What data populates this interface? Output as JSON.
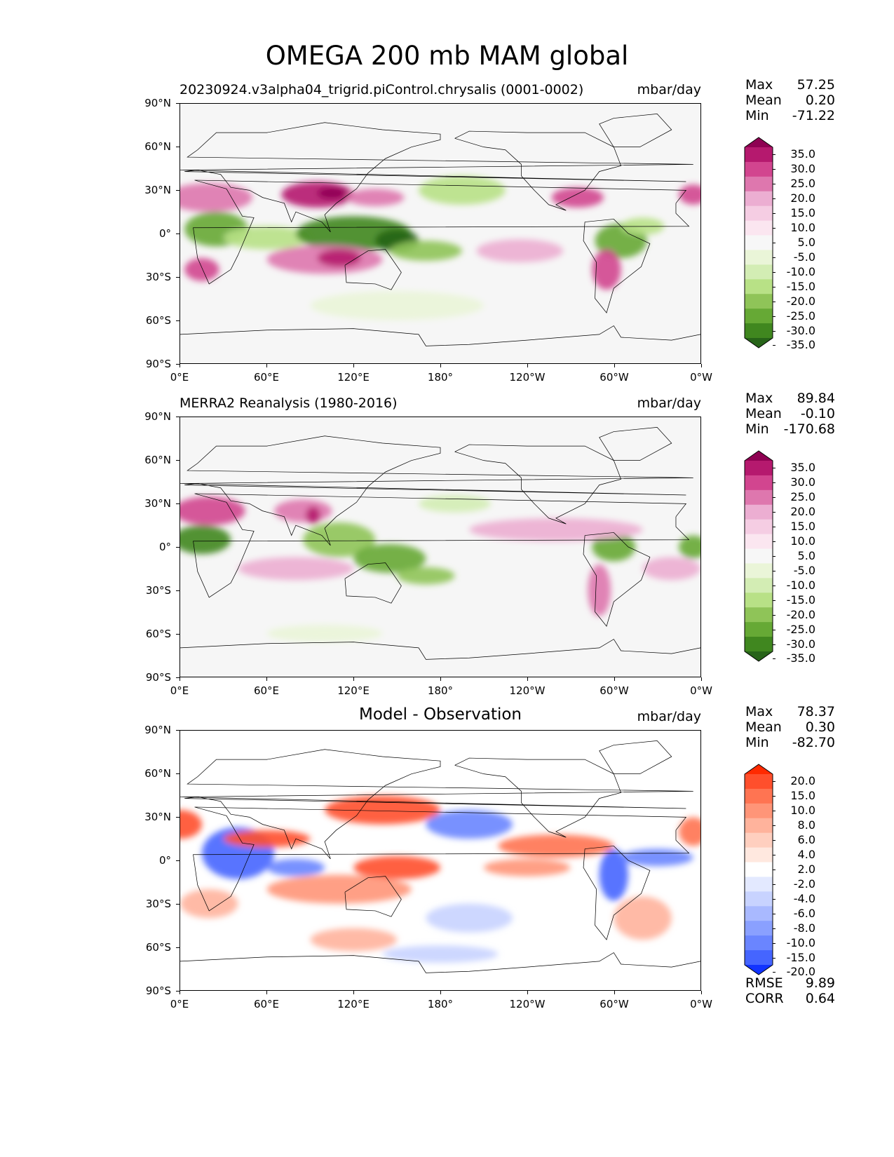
{
  "title": "OMEGA 200 mb MAM global",
  "panels": [
    {
      "subtitle": "20230924.v3alpha04_trigrid.piControl.chrysalis (0001-0002)",
      "subtitle_style": "left",
      "units": "mbar/day",
      "stats": [
        {
          "key": "Max",
          "value": "57.25"
        },
        {
          "key": "Mean",
          "value": "0.20"
        },
        {
          "key": "Min",
          "value": "-71.22"
        }
      ],
      "colorbar": {
        "labels": [
          "35.0",
          "30.0",
          "25.0",
          "20.0",
          "15.0",
          "10.0",
          "5.0",
          "-5.0",
          "-10.0",
          "-15.0",
          "-20.0",
          "-25.0",
          "-30.0",
          "-35.0"
        ],
        "colors": [
          "#8e0152",
          "#b5196e",
          "#d2458f",
          "#de77ae",
          "#ecaed2",
          "#f5cde3",
          "#fbe6f0",
          "#f7f7f7",
          "#eaf5d8",
          "#d3edb4",
          "#b8e186",
          "#8fc458",
          "#66a935",
          "#40871f",
          "#276419"
        ]
      }
    },
    {
      "subtitle": "MERRA2 Reanalysis (1980-2016)",
      "subtitle_style": "left",
      "units": "mbar/day",
      "stats": [
        {
          "key": "Max",
          "value": "89.84"
        },
        {
          "key": "Mean",
          "value": "-0.10"
        },
        {
          "key": "Min",
          "value": "-170.68"
        }
      ],
      "colorbar": {
        "labels": [
          "35.0",
          "30.0",
          "25.0",
          "20.0",
          "15.0",
          "10.0",
          "5.0",
          "-5.0",
          "-10.0",
          "-15.0",
          "-20.0",
          "-25.0",
          "-30.0",
          "-35.0"
        ],
        "colors": [
          "#8e0152",
          "#b5196e",
          "#d2458f",
          "#de77ae",
          "#ecaed2",
          "#f5cde3",
          "#fbe6f0",
          "#f7f7f7",
          "#eaf5d8",
          "#d3edb4",
          "#b8e186",
          "#8fc458",
          "#66a935",
          "#40871f",
          "#276419"
        ]
      }
    },
    {
      "subtitle": "Model - Observation",
      "subtitle_style": "center",
      "units": "mbar/day",
      "stats": [
        {
          "key": "Max",
          "value": "78.37"
        },
        {
          "key": "Mean",
          "value": "0.30"
        },
        {
          "key": "Min",
          "value": "-82.70"
        }
      ],
      "extra_stats": [
        {
          "key": "RMSE",
          "value": "9.89"
        },
        {
          "key": "CORR",
          "value": "0.64"
        }
      ],
      "colorbar": {
        "labels": [
          "20.0",
          "15.0",
          "10.0",
          "8.0",
          "6.0",
          "4.0",
          "2.0",
          "-2.0",
          "-4.0",
          "-6.0",
          "-8.0",
          "-10.0",
          "-15.0",
          "-20.0"
        ],
        "colors": [
          "#ff2a00",
          "#ff4f2c",
          "#ff7452",
          "#ff9578",
          "#ffb39c",
          "#ffcfbf",
          "#ffe8df",
          "#ffffff",
          "#e3e9ff",
          "#c8d3ff",
          "#a9b9ff",
          "#8aa0ff",
          "#6a85ff",
          "#4565ff",
          "#1133ff"
        ]
      }
    }
  ],
  "axes": {
    "y_ticks": [
      "90°N",
      "60°N",
      "30°N",
      "0°",
      "30°S",
      "60°S",
      "90°S"
    ],
    "x_ticks": [
      "0°E",
      "60°E",
      "120°E",
      "180°",
      "120°W",
      "60°W",
      "0°W"
    ]
  },
  "chart_data": {
    "type": "heatmap",
    "title": "OMEGA 200 mb MAM global",
    "units": "mbar/day",
    "projection": "PlateCarree",
    "xlim": [
      0,
      360
    ],
    "ylim": [
      -90,
      90
    ],
    "x_ticks": [
      "0°E",
      "60°E",
      "120°E",
      "180°",
      "120°W",
      "60°W",
      "0°W"
    ],
    "y_ticks": [
      "90°N",
      "60°N",
      "30°N",
      "0°",
      "30°S",
      "60°S",
      "90°S"
    ],
    "panels": [
      {
        "name": "20230924.v3alpha04_trigrid.piControl.chrysalis (0001-0002)",
        "max": 57.25,
        "mean": 0.2,
        "min": -71.22,
        "levels": [
          -35,
          -30,
          -25,
          -20,
          -15,
          -10,
          -5,
          5,
          10,
          15,
          20,
          25,
          30,
          35
        ]
      },
      {
        "name": "MERRA2 Reanalysis (1980-2016)",
        "max": 89.84,
        "mean": -0.1,
        "min": -170.68,
        "levels": [
          -35,
          -30,
          -25,
          -20,
          -15,
          -10,
          -5,
          5,
          10,
          15,
          20,
          25,
          30,
          35
        ]
      },
      {
        "name": "Model - Observation",
        "max": 78.37,
        "mean": 0.3,
        "min": -82.7,
        "rmse": 9.89,
        "corr": 0.64,
        "levels": [
          -20,
          -15,
          -10,
          -8,
          -6,
          -4,
          -2,
          2,
          4,
          6,
          8,
          10,
          15,
          20
        ]
      }
    ]
  }
}
